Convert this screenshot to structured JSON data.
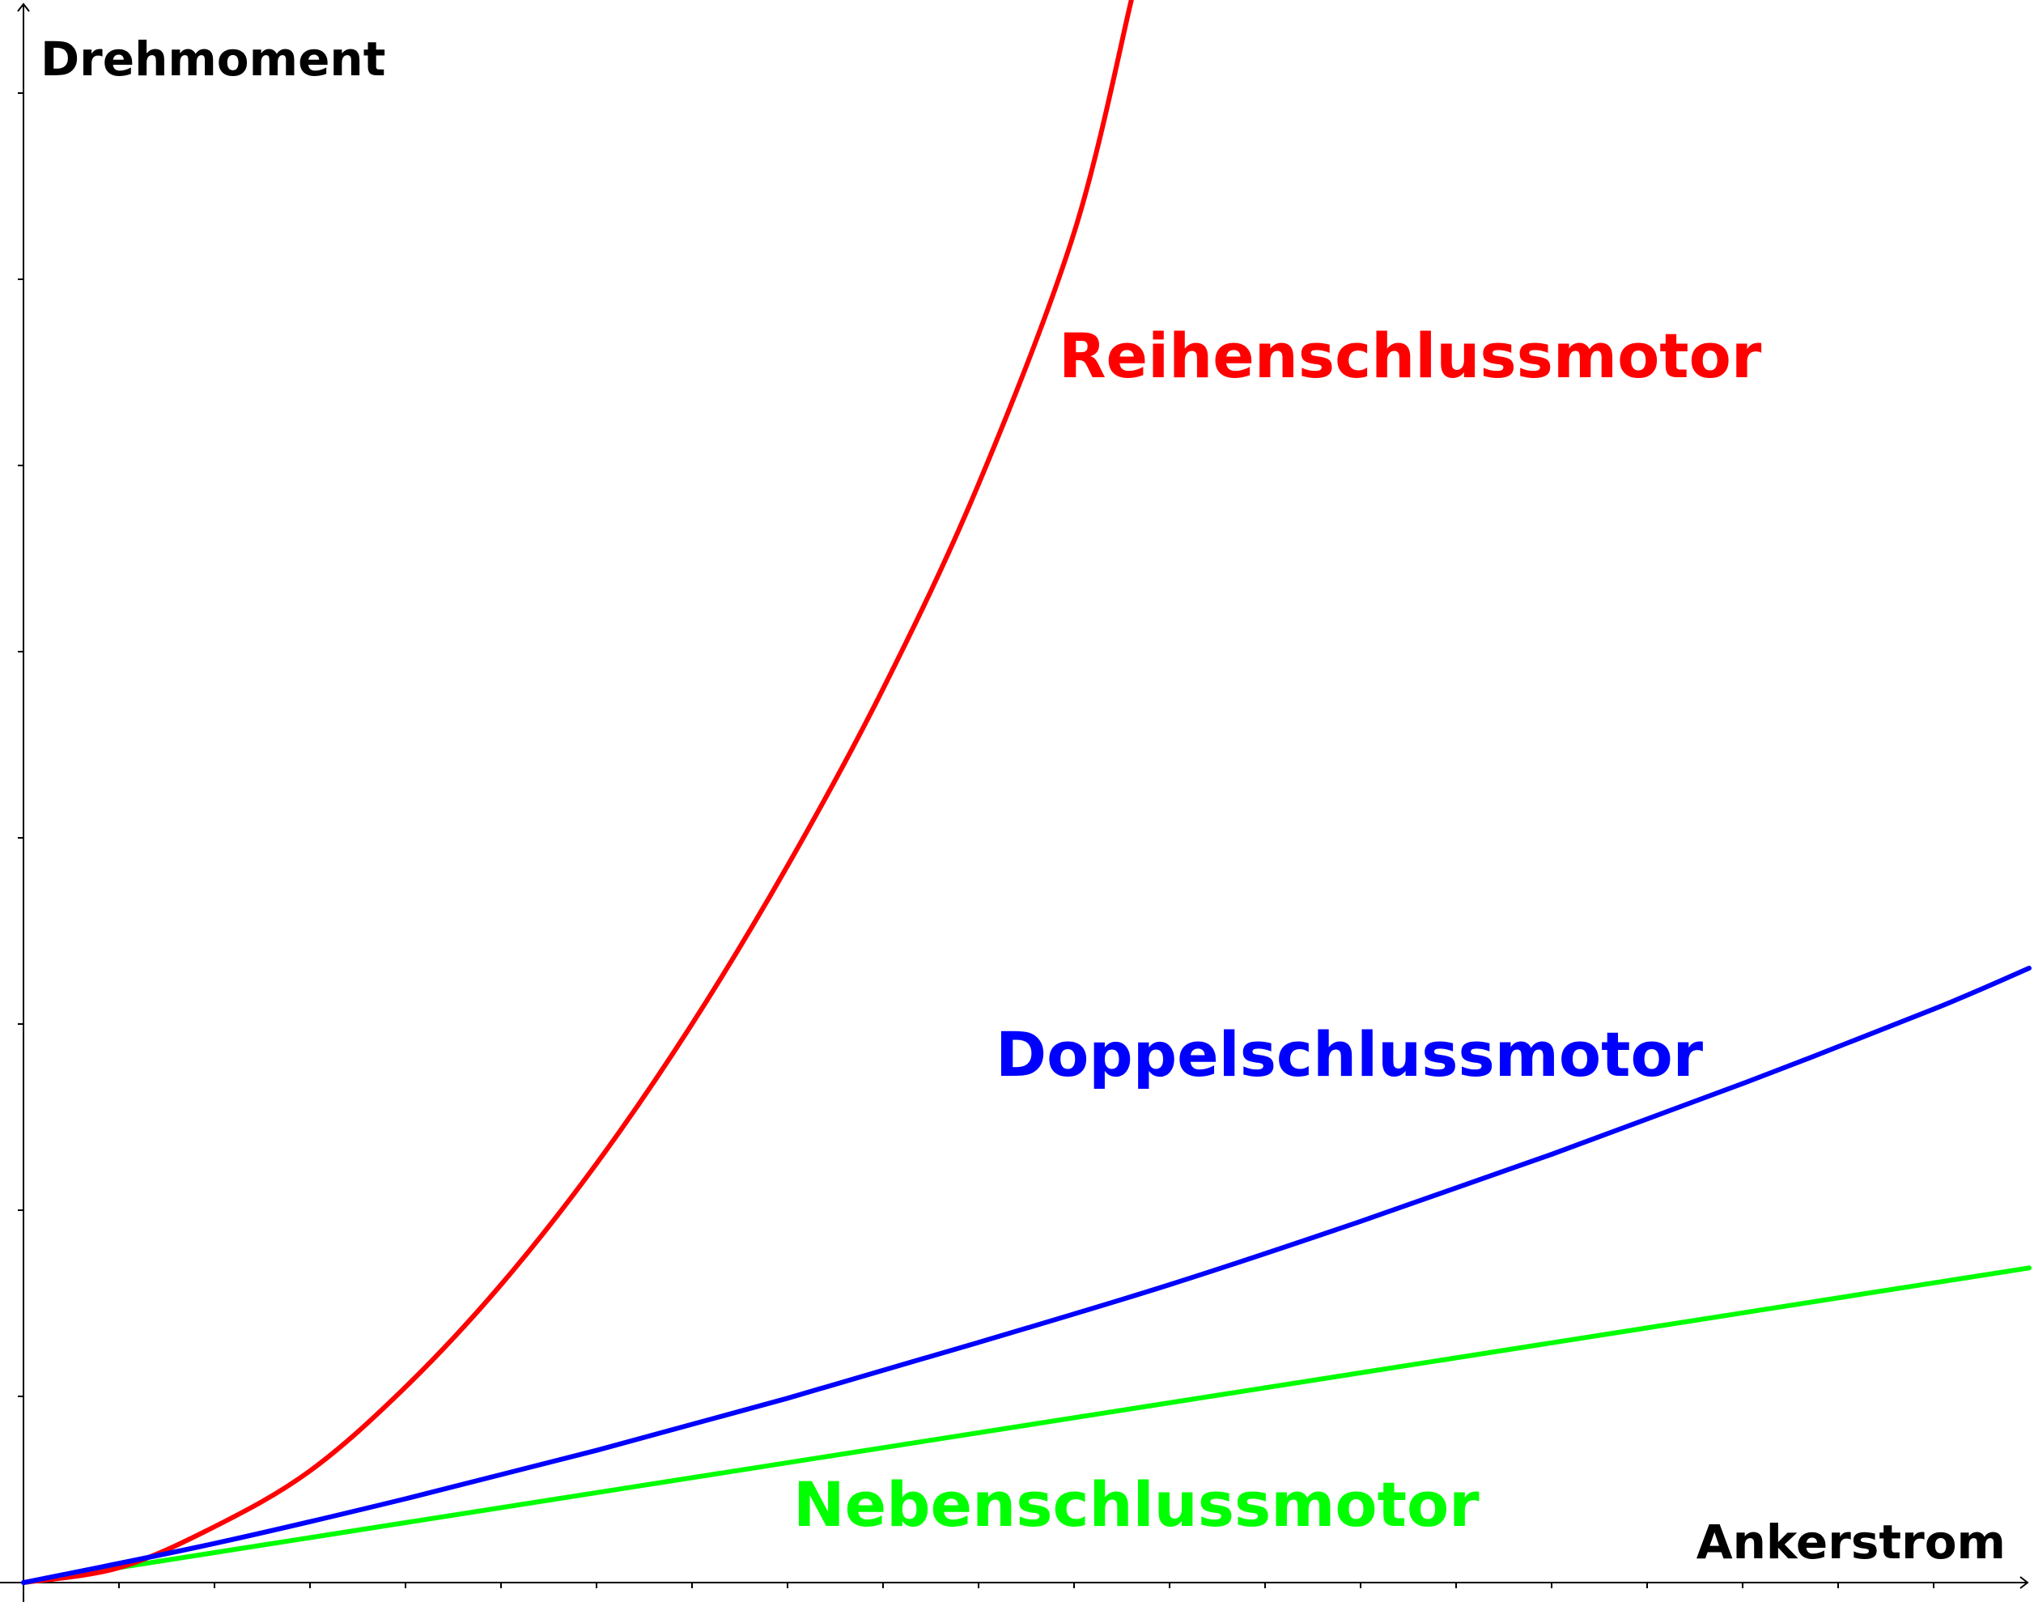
{
  "chart_data": {
    "type": "line",
    "title": "",
    "xlabel": "Ankerstrom",
    "ylabel": "Drehmoment",
    "xlim": [
      0,
      21
    ],
    "ylim": [
      0,
      8.5
    ],
    "x_ticks": [
      1,
      2,
      3,
      4,
      5,
      6,
      7,
      8,
      9,
      10,
      11,
      12,
      13,
      14,
      15,
      16,
      17,
      18,
      19,
      20
    ],
    "y_ticks": [
      1,
      2,
      3,
      4,
      5,
      6,
      7,
      8
    ],
    "tick_labels_shown": false,
    "grid": false,
    "legend": "none (inline labels)",
    "series": [
      {
        "name": "Reihenschlussmotor",
        "color": "#ff0000",
        "x": [
          0,
          1,
          2,
          3,
          4,
          5,
          6,
          7,
          8,
          9,
          10,
          11,
          11.6
        ],
        "values": [
          0,
          0.08,
          0.3,
          0.6,
          1.05,
          1.6,
          2.25,
          3.0,
          3.85,
          4.8,
          5.9,
          7.25,
          8.5
        ]
      },
      {
        "name": "Doppelschlussmotor",
        "color": "#0000ff",
        "x": [
          0,
          2,
          4,
          6,
          8,
          10,
          12,
          14,
          16,
          18,
          20,
          21
        ],
        "values": [
          0,
          0.21,
          0.45,
          0.71,
          0.99,
          1.29,
          1.6,
          1.94,
          2.3,
          2.68,
          3.08,
          3.3
        ]
      },
      {
        "name": "Nebenschlussmotor",
        "color": "#00ff00",
        "x": [
          0,
          21
        ],
        "values": [
          0,
          1.69
        ]
      }
    ]
  }
}
